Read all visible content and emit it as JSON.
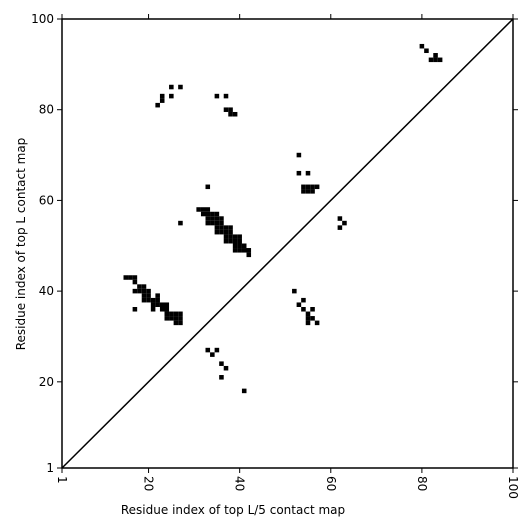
{
  "chart_data": {
    "type": "contact_map",
    "xlabel": "Residue index of top L/5 contact map",
    "ylabel": "Residue index of top L contact map",
    "xlim": [
      1,
      100
    ],
    "ylim": [
      1,
      100
    ],
    "xticks": [
      1,
      20,
      40,
      60,
      80,
      100
    ],
    "yticks": [
      1,
      20,
      40,
      60,
      80,
      100
    ],
    "color": "#000000",
    "x": [
      22,
      23,
      23,
      25,
      25,
      27,
      35,
      37,
      37,
      38,
      38,
      39,
      53,
      53,
      55,
      33,
      54,
      55,
      56,
      57,
      54,
      55,
      56,
      27,
      31,
      32,
      33,
      32,
      33,
      34,
      35,
      33,
      34,
      35,
      36,
      33,
      34,
      35,
      36,
      35,
      36,
      37,
      38,
      35,
      36,
      37,
      38,
      37,
      38,
      39,
      40,
      37,
      38,
      39,
      40,
      39,
      40,
      41,
      39,
      40,
      41,
      42,
      42,
      62,
      63,
      62,
      80,
      81,
      82,
      83,
      84,
      83,
      15,
      16,
      17,
      17,
      18,
      19,
      17,
      18,
      19,
      20,
      19,
      20,
      22,
      19,
      20,
      21,
      22,
      21,
      22,
      23,
      24,
      17,
      21,
      23,
      24,
      24,
      25,
      26,
      27,
      24,
      25,
      26,
      27,
      26,
      27,
      52,
      54,
      53,
      54,
      56,
      55,
      55,
      56,
      55,
      57,
      33,
      35,
      34,
      36,
      37,
      36,
      41
    ],
    "y": [
      81,
      82,
      83,
      83,
      85,
      85,
      83,
      83,
      80,
      80,
      79,
      79,
      70,
      66,
      66,
      63,
      63,
      63,
      63,
      63,
      62,
      62,
      62,
      55,
      58,
      58,
      58,
      57,
      57,
      57,
      57,
      56,
      56,
      56,
      56,
      55,
      55,
      55,
      55,
      54,
      54,
      54,
      54,
      53,
      53,
      53,
      53,
      52,
      52,
      52,
      52,
      51,
      51,
      51,
      51,
      50,
      50,
      50,
      49,
      49,
      49,
      49,
      48,
      56,
      55,
      54,
      94,
      93,
      91,
      91,
      91,
      92,
      43,
      43,
      43,
      42,
      41,
      41,
      40,
      40,
      40,
      40,
      39,
      39,
      39,
      38,
      38,
      38,
      38,
      37,
      37,
      37,
      37,
      36,
      36,
      36,
      36,
      35,
      35,
      35,
      35,
      34,
      34,
      34,
      34,
      33,
      33,
      40,
      38,
      37,
      36,
      36,
      35,
      34,
      34,
      33,
      33,
      27,
      27,
      26,
      24,
      23,
      21,
      18
    ]
  }
}
